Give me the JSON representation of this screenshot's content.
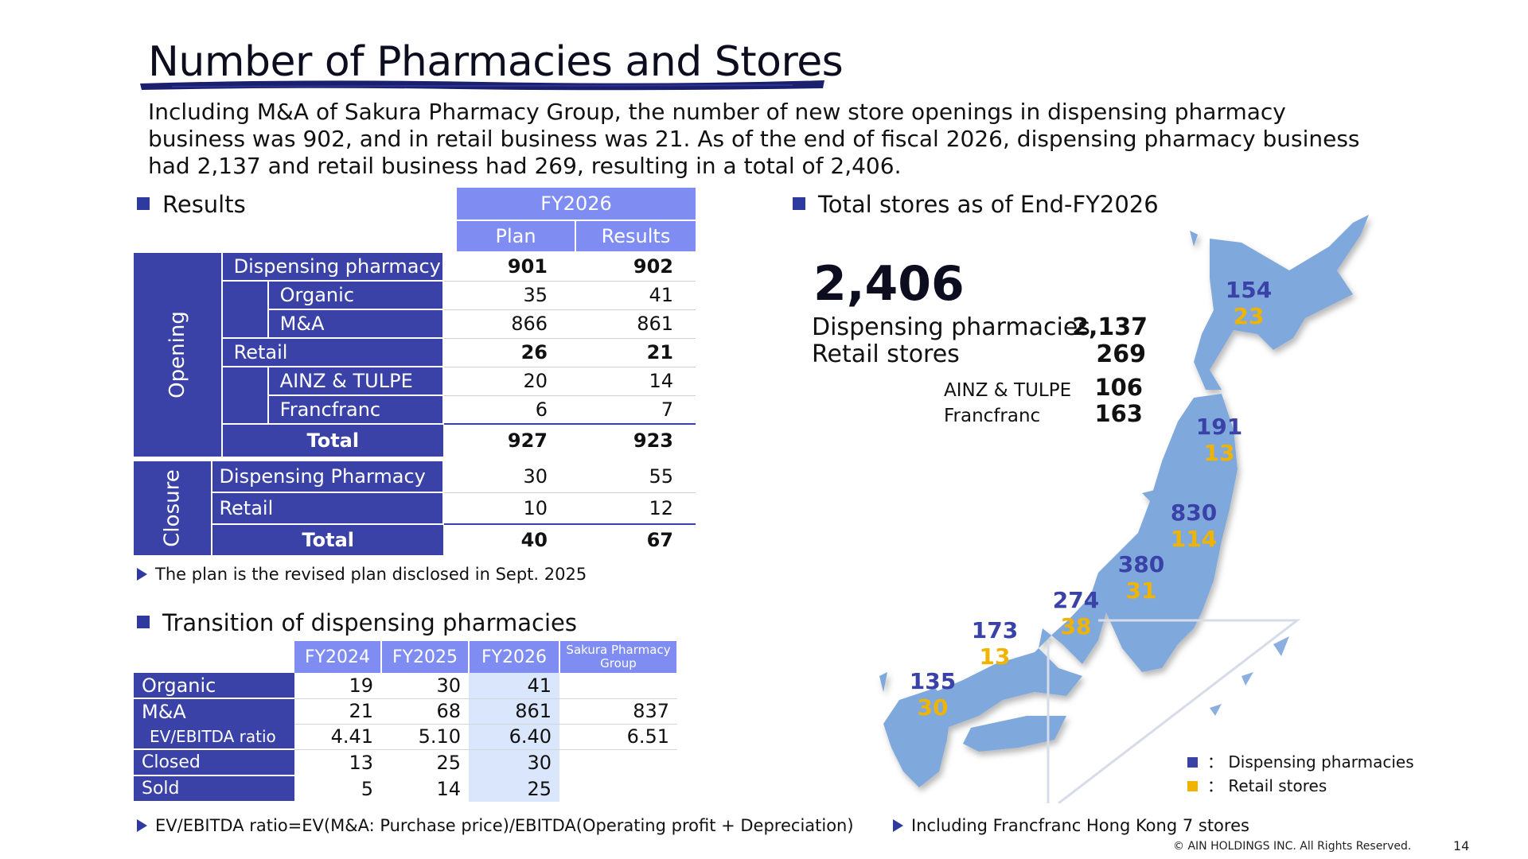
{
  "title": "Number of Pharmacies and Stores",
  "intro": "Including M&A of Sakura Pharmacy Group, the number of new store openings in dispensing pharmacy business was 902, and in retail business was 21. As of the end of fiscal 2026, dispensing pharmacy business had 2,137 and retail business had 269, resulting in a total of 2,406.",
  "results": {
    "heading": "Results",
    "fy": "FY2026",
    "plan": "Plan",
    "results_col": "Results",
    "opening_label": "Opening",
    "closure_label": "Closure",
    "opening": {
      "dispensing": {
        "label": "Dispensing pharmacy",
        "plan": "901",
        "result": "902"
      },
      "organic": {
        "label": "Organic",
        "plan": "35",
        "result": "41"
      },
      "ma": {
        "label": "M&A",
        "plan": "866",
        "result": "861"
      },
      "retail": {
        "label": "Retail",
        "plan": "26",
        "result": "21"
      },
      "ainz": {
        "label": "AINZ & TULPE",
        "plan": "20",
        "result": "14"
      },
      "francfranc": {
        "label": "Francfranc",
        "plan": "6",
        "result": "7"
      },
      "total": {
        "label": "Total",
        "plan": "927",
        "result": "923"
      }
    },
    "closure": {
      "dispensing": {
        "label": "Dispensing Pharmacy",
        "plan": "30",
        "result": "55"
      },
      "retail": {
        "label": "Retail",
        "plan": "10",
        "result": "12"
      },
      "total": {
        "label": "Total",
        "plan": "40",
        "result": "67"
      }
    },
    "note": "The plan is the revised plan disclosed in Sept. 2025"
  },
  "transition": {
    "heading": "Transition of dispensing pharmacies",
    "headers": [
      "FY2024",
      "FY2025",
      "FY2026"
    ],
    "sakura_header": "Sakura Pharmacy Group",
    "rows": {
      "organic": {
        "label": "Organic",
        "v": [
          "19",
          "30",
          "41",
          ""
        ]
      },
      "ma": {
        "label": "M&A",
        "v": [
          "21",
          "68",
          "861",
          "837"
        ]
      },
      "ev": {
        "label": "EV/EBITDA ratio",
        "v": [
          "4.41",
          "5.10",
          "6.40",
          "6.51"
        ]
      },
      "closed": {
        "label": "Closed",
        "v": [
          "13",
          "25",
          "30",
          ""
        ]
      },
      "sold": {
        "label": "Sold",
        "v": [
          "5",
          "14",
          "25",
          ""
        ]
      }
    },
    "note": "EV/EBITDA ratio=EV(M&A: Purchase price)/EBITDA(Operating profit + Depreciation)"
  },
  "total_stores": {
    "heading": "Total stores as of End-FY2026",
    "total": "2,406",
    "dispensing_label": "Dispensing pharmacies",
    "dispensing_value": "2,137",
    "retail_label": "Retail stores",
    "retail_value": "269",
    "ainz_label": "AINZ & TULPE",
    "ainz_value": "106",
    "francfranc_label": "Francfranc",
    "francfranc_value": "163",
    "note": "Including Francfranc Hong Kong 7 stores"
  },
  "map": {
    "regions": [
      {
        "dispensing": "154",
        "retail": "23"
      },
      {
        "dispensing": "191",
        "retail": "13"
      },
      {
        "dispensing": "830",
        "retail": "114"
      },
      {
        "dispensing": "380",
        "retail": "31"
      },
      {
        "dispensing": "274",
        "retail": "38"
      },
      {
        "dispensing": "173",
        "retail": "13"
      },
      {
        "dispensing": "135",
        "retail": "30"
      }
    ],
    "legend_dispensing": "： Dispensing pharmacies",
    "legend_retail": "： Retail stores",
    "colors": {
      "dispensing": "#3a42a8",
      "retail": "#f0b400",
      "land": "#7fa8dc"
    }
  },
  "footer": {
    "copyright": "© AIN HOLDINGS INC. All Rights Reserved.",
    "page": "14"
  }
}
